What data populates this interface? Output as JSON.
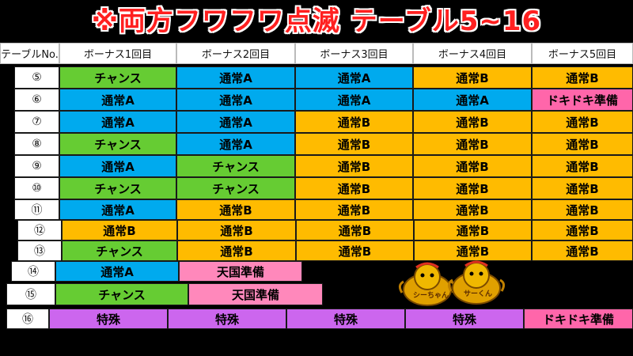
{
  "title": "※両方フワフワ点滅 テーブル5~16",
  "colors": {
    "チャンス": "#66cc33",
    "通常A": "#00aaee",
    "通常B": "#ffbb00",
    "ドキドキ準備": "#ff66aa",
    "天国準備": "#ff88bb",
    "特殊": "#cc66ee"
  },
  "header": {
    "corner": "テーブルNo.",
    "columns": [
      "ボーナス1回目",
      "ボーナス2回目",
      "ボーナス3回目",
      "ボーナス4回目",
      "ボーナス5回目"
    ]
  },
  "rows": [
    {
      "label": "⑤",
      "cells": [
        "チャンス",
        "通常A",
        "通常A",
        "通常B",
        "通常B"
      ]
    },
    {
      "label": "⑥",
      "cells": [
        "通常A",
        "通常A",
        "通常A",
        "通常A",
        "ドキドキ準備"
      ]
    },
    {
      "label": "⑦",
      "cells": [
        "通常A",
        "通常A",
        "通常B",
        "通常B",
        "通常B"
      ]
    },
    {
      "label": "⑧",
      "cells": [
        "チャンス",
        "通常A",
        "通常B",
        "通常B",
        "通常B"
      ]
    },
    {
      "label": "⑨",
      "cells": [
        "通常A",
        "チャンス",
        "通常B",
        "通常B",
        "通常B"
      ]
    },
    {
      "label": "⑩",
      "cells": [
        "チャンス",
        "チャンス",
        "通常B",
        "通常B",
        "通常B"
      ]
    },
    {
      "label": "⑪",
      "cells": [
        "通常A",
        "通常B",
        "通常B",
        "通常B",
        "通常B"
      ]
    },
    {
      "label": "⑫",
      "cells": [
        "通常B",
        "通常B",
        "通常B",
        "通常B",
        "通常B"
      ]
    },
    {
      "label": "⑬",
      "cells": [
        "チャンス",
        "通常B",
        "通常B",
        "通常B",
        "通常B"
      ]
    },
    {
      "label": "⑭",
      "cells": [
        "通常A",
        "天国準備"
      ]
    },
    {
      "label": "⑮",
      "cells": [
        "チャンス",
        "天国準備"
      ]
    },
    {
      "label": "⑯",
      "cells": [
        "特殊",
        "特殊",
        "特殊",
        "特殊",
        "ドキドキ準備"
      ]
    }
  ],
  "mascots": [
    {
      "name": "シーちゃん",
      "label": "シーちゃん"
    },
    {
      "name": "サーくん",
      "label": "サーくん"
    }
  ]
}
